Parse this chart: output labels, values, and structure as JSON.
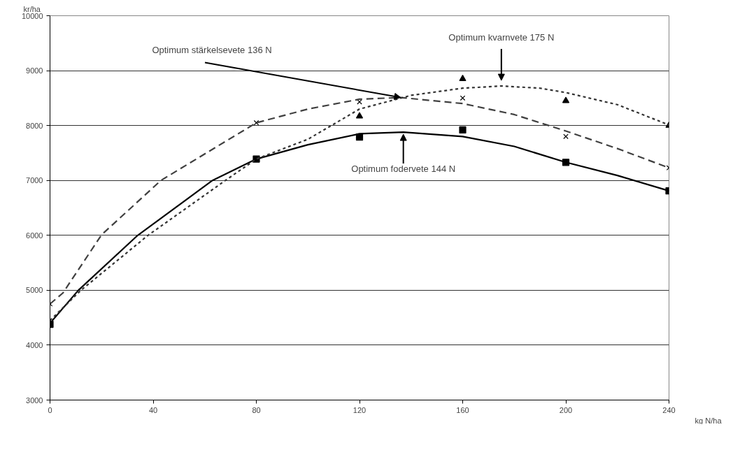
{
  "chart_data": {
    "type": "scatter",
    "xlabel": "kg N/ha",
    "ylabel": "kr/ha",
    "x": [
      0,
      80,
      120,
      160,
      200,
      240
    ],
    "xlim": [
      0,
      240
    ],
    "xticks": [
      0,
      40,
      80,
      120,
      160,
      200,
      240
    ],
    "ylim": [
      3000,
      10000
    ],
    "yticks": [
      3000,
      4000,
      5000,
      6000,
      7000,
      8000,
      9000,
      10000
    ],
    "grid": "y",
    "series": [
      {
        "marker": "square",
        "color": "#000000",
        "values": [
          4380,
          7390,
          7790,
          7920,
          7330,
          6810
        ]
      },
      {
        "marker": "x",
        "color": "#000000",
        "values": [
          4750,
          8050,
          8430,
          8500,
          7800,
          7230
        ]
      },
      {
        "marker": "triangle",
        "color": "#000000",
        "values": [
          null,
          null,
          8170,
          8850,
          8450,
          8000
        ]
      },
      {
        "type": "line",
        "line_style": "solid",
        "color": "#000000",
        "x": [
          0,
          11,
          34,
          63,
          80,
          100,
          120,
          137,
          160,
          180,
          200,
          220,
          240
        ],
        "values": [
          4400,
          5000,
          6000,
          7000,
          7390,
          7650,
          7850,
          7880,
          7800,
          7620,
          7330,
          7090,
          6810
        ]
      },
      {
        "type": "line",
        "line_style": "dashed",
        "color": "#404040",
        "x": [
          0,
          5,
          20,
          43,
          80,
          100,
          120,
          136,
          160,
          180,
          200,
          220,
          240
        ],
        "values": [
          4750,
          4950,
          6010,
          7000,
          8050,
          8300,
          8480,
          8510,
          8400,
          8200,
          7900,
          7580,
          7230
        ]
      },
      {
        "type": "line",
        "line_style": "dotted",
        "color": "#333333",
        "x": [
          0,
          12,
          38,
          68,
          80,
          100,
          120,
          140,
          160,
          175,
          190,
          200,
          220,
          240
        ],
        "values": [
          4450,
          5000,
          6000,
          7000,
          7390,
          7750,
          8300,
          8550,
          8680,
          8720,
          8680,
          8600,
          8380,
          8010
        ]
      }
    ],
    "annotations": [
      {
        "text": "Optimum stärkelsevete 136 N",
        "x": 136,
        "y": 8510
      },
      {
        "text": "Optimum kvarnvete 175 N",
        "x": 175,
        "y": 8720
      },
      {
        "text": "Optimum fodervete 144 N",
        "x": 137,
        "y": 7880
      }
    ]
  }
}
